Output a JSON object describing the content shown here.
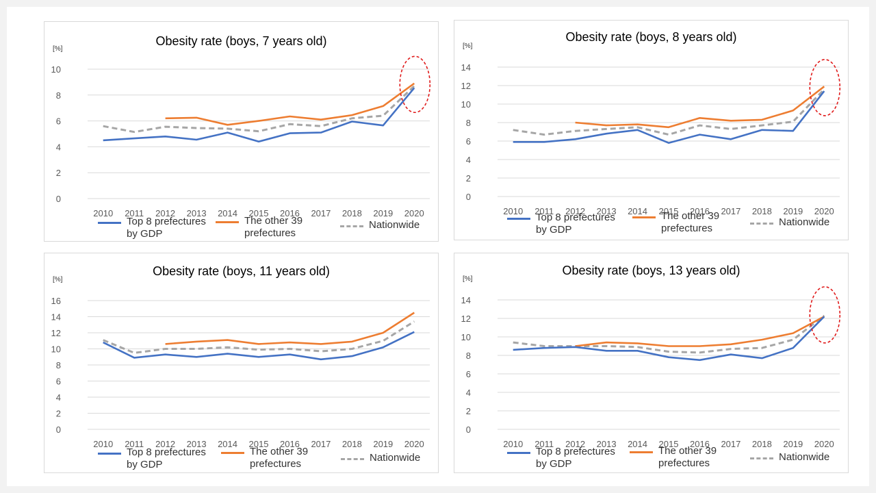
{
  "colors": {
    "top8": "#4472c4",
    "other39": "#ed7d31",
    "nationwide": "#a6a6a6",
    "highlight": "#e01b1b",
    "grid": "#d9d9d9"
  },
  "legend": {
    "top8": "Top 8 prefectures by GDP",
    "other39": "The other 39 prefectures",
    "nationwide": "Nationwide"
  },
  "chart_data": [
    {
      "type": "line",
      "title": "Obesity rate (boys, 7 years old)",
      "unit": "[%]",
      "x": [
        "2010",
        "2011",
        "2012",
        "2013",
        "2014",
        "2015",
        "2016",
        "2017",
        "2018",
        "2019",
        "2020"
      ],
      "ylim": [
        0,
        10
      ],
      "yticks": [
        0,
        2,
        4,
        6,
        8,
        10
      ],
      "grid": true,
      "legend_position": "bottom",
      "highlight_2020": true,
      "series": [
        {
          "key": "top8",
          "name": "Top 8 prefectures by GDP",
          "values": [
            4.5,
            4.65,
            4.8,
            4.55,
            5.1,
            4.4,
            5.05,
            5.1,
            5.95,
            5.65,
            8.55
          ]
        },
        {
          "key": "other39",
          "name": "The other 39 prefectures",
          "values": [
            null,
            null,
            6.2,
            6.25,
            5.7,
            6.0,
            6.35,
            6.1,
            6.45,
            7.15,
            8.9
          ]
        },
        {
          "key": "nationwide",
          "name": "Nationwide",
          "values": [
            5.6,
            5.15,
            5.55,
            5.45,
            5.4,
            5.2,
            5.75,
            5.6,
            6.2,
            6.4,
            8.7
          ]
        }
      ]
    },
    {
      "type": "line",
      "title": "Obesity rate (boys, 8 years old)",
      "unit": "[%]",
      "x": [
        "2010",
        "2011",
        "2012",
        "2013",
        "2014",
        "2015",
        "2016",
        "2017",
        "2018",
        "2019",
        "2020"
      ],
      "ylim": [
        0,
        14
      ],
      "yticks": [
        0,
        2,
        4,
        6,
        8,
        10,
        12,
        14
      ],
      "grid": true,
      "legend_position": "bottom",
      "highlight_2020": true,
      "series": [
        {
          "key": "top8",
          "name": "Top 8 prefectures by GDP",
          "values": [
            5.9,
            5.9,
            6.2,
            6.8,
            7.2,
            5.8,
            6.7,
            6.2,
            7.2,
            7.1,
            11.4
          ]
        },
        {
          "key": "other39",
          "name": "The other 39 prefectures",
          "values": [
            null,
            null,
            8.0,
            7.7,
            7.8,
            7.5,
            8.5,
            8.2,
            8.3,
            9.3,
            11.9
          ]
        },
        {
          "key": "nationwide",
          "name": "Nationwide",
          "values": [
            7.2,
            6.7,
            7.1,
            7.3,
            7.5,
            6.7,
            7.7,
            7.3,
            7.7,
            8.1,
            11.6
          ]
        }
      ]
    },
    {
      "type": "line",
      "title": "Obesity rate (boys, 11 years old)",
      "unit": "[%]",
      "x": [
        "2010",
        "2011",
        "2012",
        "2013",
        "2014",
        "2015",
        "2016",
        "2017",
        "2018",
        "2019",
        "2020"
      ],
      "ylim": [
        0,
        16
      ],
      "yticks": [
        0,
        2,
        4,
        6,
        8,
        10,
        12,
        14,
        16
      ],
      "grid": true,
      "legend_position": "bottom",
      "highlight_2020": false,
      "series": [
        {
          "key": "top8",
          "name": "Top 8 prefectures by GDP",
          "values": [
            10.8,
            8.9,
            9.3,
            9.0,
            9.4,
            9.0,
            9.3,
            8.7,
            9.1,
            10.2,
            12.1
          ]
        },
        {
          "key": "other39",
          "name": "The other 39 prefectures",
          "values": [
            null,
            null,
            10.6,
            10.9,
            11.1,
            10.6,
            10.8,
            10.6,
            10.9,
            12.0,
            14.5
          ]
        },
        {
          "key": "nationwide",
          "name": "Nationwide",
          "values": [
            11.1,
            9.5,
            10.0,
            10.0,
            10.2,
            9.9,
            10.0,
            9.7,
            10.0,
            11.0,
            13.4
          ]
        }
      ]
    },
    {
      "type": "line",
      "title": "Obesity rate (boys, 13 years old)",
      "unit": "[%]",
      "x": [
        "2010",
        "2011",
        "2012",
        "2013",
        "2014",
        "2015",
        "2016",
        "2017",
        "2018",
        "2019",
        "2020"
      ],
      "ylim": [
        0,
        14
      ],
      "yticks": [
        0,
        2,
        4,
        6,
        8,
        10,
        12,
        14
      ],
      "grid": true,
      "legend_position": "bottom",
      "highlight_2020": true,
      "series": [
        {
          "key": "top8",
          "name": "Top 8 prefectures by GDP",
          "values": [
            8.6,
            8.8,
            8.9,
            8.5,
            8.5,
            7.8,
            7.5,
            8.1,
            7.7,
            8.8,
            12.2
          ]
        },
        {
          "key": "other39",
          "name": "The other 39 prefectures",
          "values": [
            null,
            null,
            9.0,
            9.4,
            9.3,
            9.0,
            9.0,
            9.2,
            9.7,
            10.4,
            12.2
          ]
        },
        {
          "key": "nationwide",
          "name": "Nationwide",
          "values": [
            9.4,
            9.0,
            9.0,
            9.0,
            8.9,
            8.4,
            8.3,
            8.7,
            8.8,
            9.7,
            12.3
          ]
        }
      ]
    }
  ]
}
